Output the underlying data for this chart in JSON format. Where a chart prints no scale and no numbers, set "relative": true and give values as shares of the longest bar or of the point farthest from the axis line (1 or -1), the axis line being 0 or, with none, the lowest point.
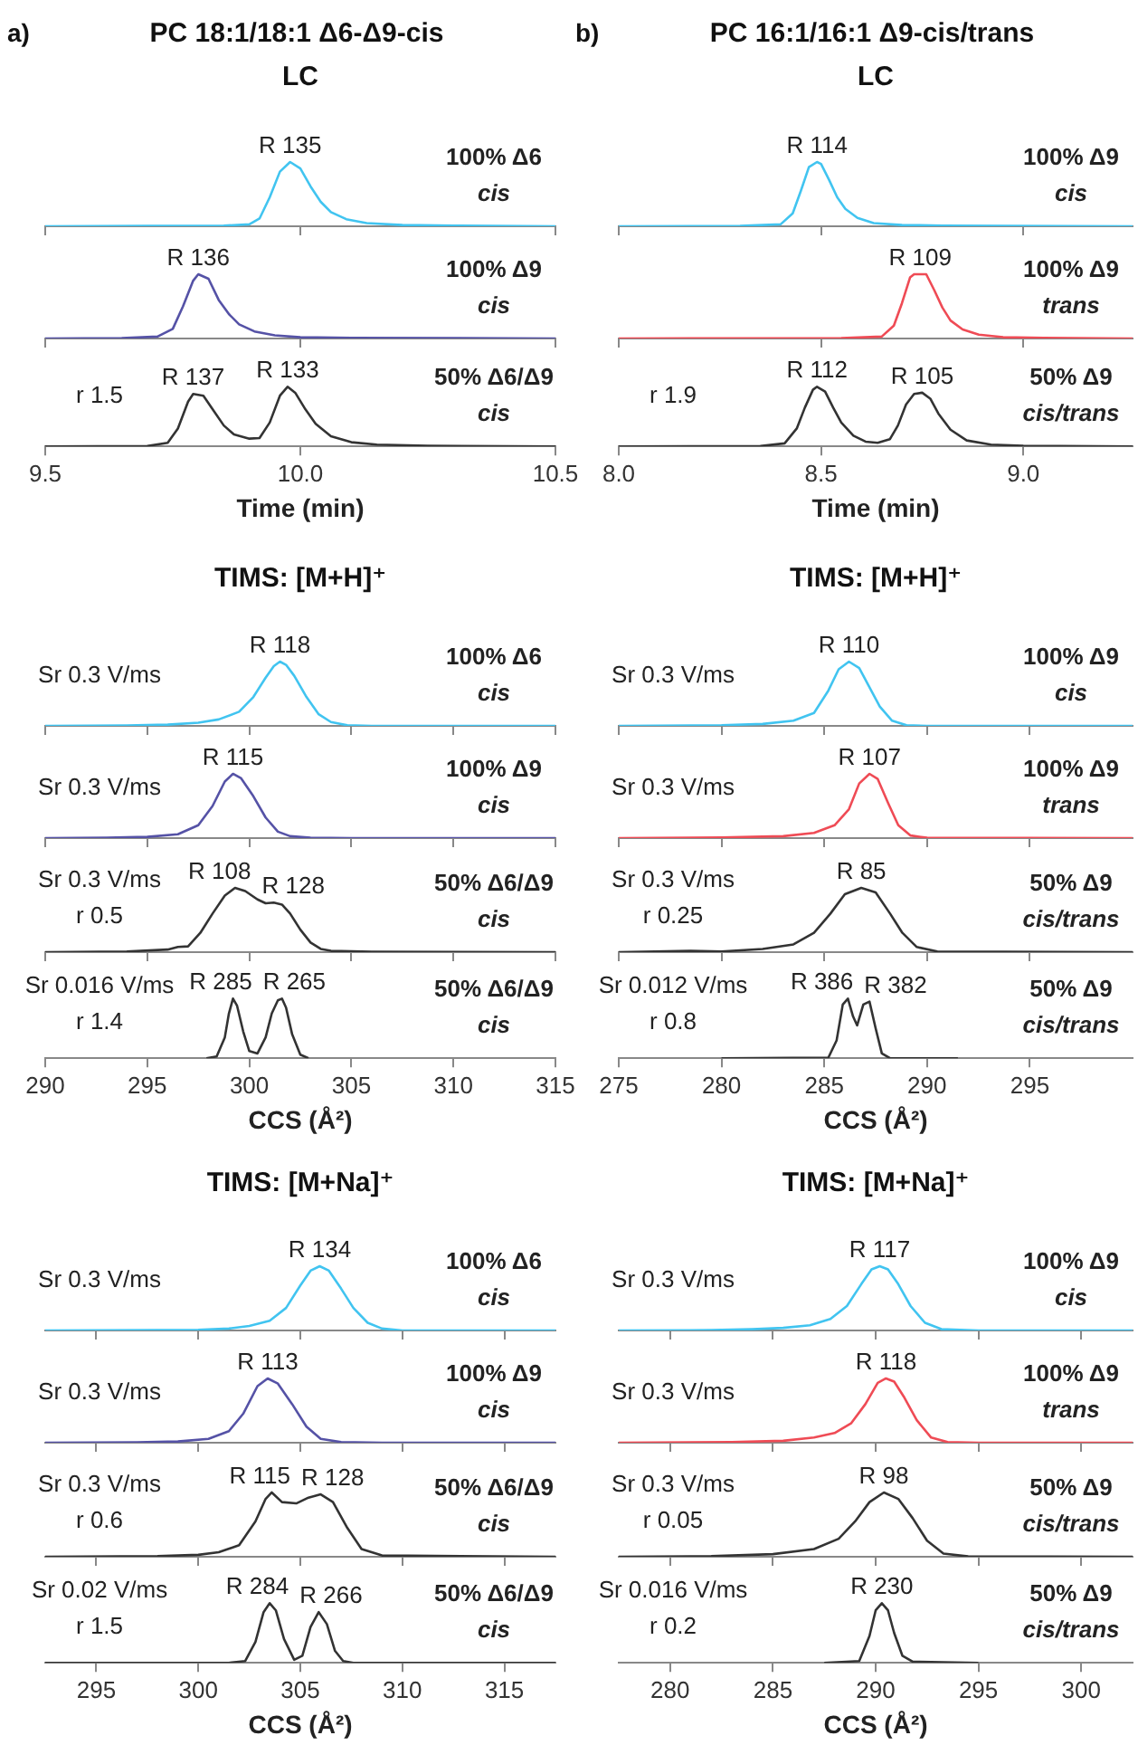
{
  "chart_data": [
    {
      "type": "other",
      "title": "PC 18:1/18:1 Δ6-Δ9-cis",
      "annotations": [
        "a)"
      ]
    },
    {
      "type": "other",
      "title": "PC 16:1/16:1 Δ9-cis/trans",
      "annotations": [
        "b)"
      ]
    },
    {
      "type": "line",
      "relative": true,
      "title": "LC",
      "xlim": [
        9.5,
        10.5
      ],
      "xticks": [
        9.5,
        10,
        10.5
      ],
      "tick_labels": false,
      "x": [
        9.5,
        9.7,
        9.85,
        9.9,
        9.92,
        9.94,
        9.96,
        9.98,
        10.0,
        10.02,
        10.04,
        10.06,
        10.09,
        10.13,
        10.2,
        10.3,
        10.5
      ],
      "series": [
        {
          "color": "#41c4f0",
          "values": [
            0,
            0.005,
            0.01,
            0.03,
            0.12,
            0.45,
            0.85,
            1,
            0.9,
            0.62,
            0.38,
            0.22,
            0.11,
            0.05,
            0.02,
            0.01,
            0
          ]
        }
      ],
      "annotations": [
        {
          "text": "R 135",
          "x": 9.98,
          "y": 1
        },
        "100% Δ6",
        "cis"
      ]
    },
    {
      "type": "line",
      "relative": true,
      "xlim": [
        9.5,
        10.5
      ],
      "xticks": [
        9.5,
        10,
        10.5
      ],
      "tick_labels": false,
      "x": [
        9.5,
        9.65,
        9.72,
        9.75,
        9.77,
        9.79,
        9.8,
        9.82,
        9.84,
        9.86,
        9.88,
        9.91,
        9.95,
        10.0,
        10.1,
        10.5
      ],
      "series": [
        {
          "color": "#5552a6",
          "values": [
            0,
            0.005,
            0.03,
            0.15,
            0.5,
            0.9,
            1,
            0.93,
            0.6,
            0.38,
            0.22,
            0.11,
            0.05,
            0.02,
            0.01,
            0
          ]
        }
      ],
      "annotations": [
        {
          "text": "R 136",
          "x": 9.8,
          "y": 1
        },
        "100% Δ9",
        "cis"
      ]
    },
    {
      "type": "line",
      "relative": true,
      "xlabel": "Time (min)",
      "xlim": [
        9.5,
        10.5
      ],
      "xticks": [
        9.5,
        {
          "value": 10,
          "label": "10.0"
        },
        10.5
      ],
      "tick_labels": "x",
      "x": [
        9.5,
        9.7,
        9.74,
        9.76,
        9.78,
        9.79,
        9.81,
        9.83,
        9.85,
        9.87,
        9.9,
        9.92,
        9.94,
        9.96,
        9.975,
        9.99,
        10.01,
        10.03,
        10.06,
        10.1,
        10.15,
        10.25,
        10.5
      ],
      "series": [
        {
          "color": "#333333",
          "values": [
            0,
            0.005,
            0.06,
            0.3,
            0.75,
            0.88,
            0.85,
            0.6,
            0.35,
            0.2,
            0.13,
            0.14,
            0.4,
            0.85,
            1,
            0.9,
            0.62,
            0.38,
            0.17,
            0.07,
            0.03,
            0.01,
            0
          ]
        }
      ],
      "annotations": [
        {
          "text": "R 137",
          "x": 9.79,
          "y": 0.88
        },
        {
          "text": "R 133",
          "x": 9.975,
          "y": 1
        },
        "50% Δ6/Δ9",
        "cis",
        "r 1.5"
      ]
    },
    {
      "type": "line",
      "relative": true,
      "title": "LC",
      "xlim": [
        8.0,
        9.27
      ],
      "xticks": [
        8,
        8.5,
        9
      ],
      "tick_labels": false,
      "x": [
        8.0,
        8.3,
        8.4,
        8.43,
        8.45,
        8.47,
        8.49,
        8.5,
        8.52,
        8.54,
        8.56,
        8.59,
        8.63,
        8.7,
        8.8,
        9.27
      ],
      "series": [
        {
          "color": "#41c4f0",
          "values": [
            0,
            0.005,
            0.03,
            0.2,
            0.55,
            0.92,
            1,
            0.97,
            0.72,
            0.45,
            0.27,
            0.13,
            0.05,
            0.02,
            0.01,
            0
          ]
        }
      ],
      "annotations": [
        {
          "text": "R 114",
          "x": 8.49,
          "y": 1
        },
        "100% Δ9",
        "cis"
      ]
    },
    {
      "type": "line",
      "relative": true,
      "xlim": [
        8.0,
        9.27
      ],
      "xticks": [
        8,
        8.5,
        9
      ],
      "tick_labels": false,
      "x": [
        8.0,
        8.55,
        8.65,
        8.68,
        8.7,
        8.72,
        8.73,
        8.76,
        8.78,
        8.8,
        8.82,
        8.85,
        8.89,
        8.95,
        9.05,
        9.27
      ],
      "series": [
        {
          "color": "#ef4b55",
          "values": [
            0,
            0.005,
            0.03,
            0.2,
            0.55,
            0.95,
            1,
            1,
            0.75,
            0.48,
            0.28,
            0.14,
            0.06,
            0.02,
            0.01,
            0
          ]
        }
      ],
      "annotations": [
        {
          "text": "R 109",
          "x": 8.745,
          "y": 1
        },
        "100% Δ9",
        "trans"
      ]
    },
    {
      "type": "line",
      "relative": true,
      "xlabel": "Time (min)",
      "xlim": [
        8.0,
        9.27
      ],
      "xticks": [
        {
          "value": 8,
          "label": "8.0"
        },
        8.5,
        {
          "value": 9,
          "label": "9.0"
        }
      ],
      "tick_labels": "x",
      "x": [
        8.0,
        8.35,
        8.41,
        8.44,
        8.46,
        8.48,
        8.49,
        8.51,
        8.53,
        8.55,
        8.58,
        8.61,
        8.64,
        8.67,
        8.69,
        8.71,
        8.73,
        8.75,
        8.77,
        8.79,
        8.82,
        8.86,
        8.92,
        9.0,
        9.27
      ],
      "series": [
        {
          "color": "#333333",
          "values": [
            0,
            0.005,
            0.05,
            0.3,
            0.65,
            0.95,
            1,
            0.92,
            0.65,
            0.4,
            0.18,
            0.08,
            0.06,
            0.12,
            0.35,
            0.7,
            0.88,
            0.9,
            0.8,
            0.55,
            0.28,
            0.1,
            0.03,
            0.01,
            0
          ]
        }
      ],
      "annotations": [
        {
          "text": "R 112",
          "x": 8.49,
          "y": 1
        },
        {
          "text": "R 105",
          "x": 8.75,
          "y": 0.9
        },
        "50% Δ9",
        "cis/trans",
        "r 1.9"
      ]
    },
    {
      "type": "line",
      "relative": true,
      "title": "TIMS: [M+H]⁺",
      "xlim": [
        290,
        315
      ],
      "xticks": [
        290,
        295,
        300,
        305,
        310,
        315
      ],
      "tick_labels": false,
      "x": [
        290,
        294,
        296,
        297.5,
        298.5,
        299.5,
        300.2,
        300.8,
        301.2,
        301.5,
        301.8,
        302.2,
        302.8,
        303.4,
        304,
        304.8,
        306,
        315
      ],
      "series": [
        {
          "color": "#41c4f0",
          "values": [
            0,
            0.005,
            0.02,
            0.05,
            0.1,
            0.22,
            0.45,
            0.75,
            0.93,
            1,
            0.95,
            0.78,
            0.45,
            0.18,
            0.06,
            0.01,
            0,
            0
          ]
        }
      ],
      "annotations": [
        {
          "text": "R 118",
          "x": 301.5,
          "y": 1
        },
        "100% Δ6",
        "cis",
        "Sr 0.3 V/ms"
      ]
    },
    {
      "type": "line",
      "relative": true,
      "xlim": [
        290,
        315
      ],
      "xticks": [
        290,
        295,
        300,
        305,
        310,
        315
      ],
      "tick_labels": false,
      "x": [
        290,
        293,
        295,
        296.5,
        297.5,
        298.2,
        298.8,
        299.2,
        299.6,
        300.2,
        300.8,
        301.4,
        302,
        303,
        305,
        315
      ],
      "series": [
        {
          "color": "#5552a6",
          "values": [
            0,
            0.005,
            0.02,
            0.06,
            0.2,
            0.5,
            0.88,
            1,
            0.93,
            0.65,
            0.32,
            0.1,
            0.03,
            0.005,
            0,
            0
          ]
        }
      ],
      "annotations": [
        {
          "text": "R 115",
          "x": 299.2,
          "y": 1
        },
        "100% Δ9",
        "cis",
        "Sr 0.3 V/ms"
      ]
    },
    {
      "type": "line",
      "relative": true,
      "xlim": [
        290,
        315
      ],
      "xticks": [
        290,
        295,
        300,
        305,
        310,
        315
      ],
      "tick_labels": false,
      "x": [
        290,
        294,
        296,
        296.5,
        297,
        297.6,
        298.2,
        298.8,
        299.3,
        299.8,
        300.4,
        300.8,
        301.2,
        301.6,
        302,
        302.5,
        303,
        303.5,
        304,
        306,
        315
      ],
      "series": [
        {
          "color": "#333333",
          "values": [
            0,
            0.01,
            0.04,
            0.08,
            0.09,
            0.3,
            0.6,
            0.88,
            1,
            0.95,
            0.82,
            0.76,
            0.77,
            0.74,
            0.6,
            0.35,
            0.15,
            0.05,
            0.02,
            0.005,
            0
          ]
        }
      ],
      "annotations": [
        {
          "text": "R 108",
          "x": 299.3,
          "y": 1
        },
        {
          "text": "R 128",
          "x": 301.4,
          "y": 0.77
        },
        "50% Δ6/Δ9",
        "cis",
        "Sr 0.3 V/ms",
        "r 0.5"
      ]
    },
    {
      "type": "line",
      "relative": true,
      "xlabel": "CCS (Å²)",
      "xlim": [
        290,
        315
      ],
      "xticks": [
        290,
        295,
        300,
        305,
        310,
        315
      ],
      "tick_labels": "x",
      "x": [
        297.9,
        298.4,
        298.8,
        299.0,
        299.2,
        299.4,
        299.7,
        300.0,
        300.4,
        300.8,
        301.1,
        301.4,
        301.6,
        301.8,
        302.1,
        302.5,
        302.9
      ],
      "series": [
        {
          "color": "#333333",
          "values": [
            0,
            0.03,
            0.35,
            0.75,
            1,
            0.88,
            0.45,
            0.12,
            0.08,
            0.35,
            0.75,
            0.97,
            1,
            0.85,
            0.4,
            0.06,
            0
          ]
        }
      ],
      "annotations": [
        {
          "text": "R 285",
          "x": 299.2,
          "y": 1
        },
        {
          "text": "R 265",
          "x": 301.6,
          "y": 1
        },
        "50% Δ6/Δ9",
        "cis",
        "Sr 0.016 V/ms",
        "r 1.4"
      ]
    },
    {
      "type": "line",
      "relative": true,
      "title": "TIMS: [M+H]⁺",
      "xlim": [
        275,
        300
      ],
      "xticks": [
        275,
        280,
        285,
        290,
        295
      ],
      "tick_labels": false,
      "x": [
        275,
        280,
        282,
        283.5,
        284.5,
        285.2,
        285.7,
        286.2,
        286.7,
        287.2,
        287.7,
        288.3,
        289,
        290,
        300
      ],
      "series": [
        {
          "color": "#41c4f0",
          "values": [
            0,
            0.01,
            0.03,
            0.08,
            0.2,
            0.55,
            0.88,
            1,
            0.9,
            0.6,
            0.3,
            0.08,
            0.01,
            0,
            0
          ]
        }
      ],
      "annotations": [
        {
          "text": "R 110",
          "x": 286.2,
          "y": 1
        },
        "100% Δ9",
        "cis",
        "Sr 0.3 V/ms"
      ]
    },
    {
      "type": "line",
      "relative": true,
      "xlim": [
        275,
        300
      ],
      "xticks": [
        275,
        280,
        285,
        290,
        295
      ],
      "tick_labels": false,
      "x": [
        275,
        280,
        283,
        284.5,
        285.5,
        286.2,
        286.7,
        287.2,
        287.6,
        288.1,
        288.6,
        289.2,
        290,
        300
      ],
      "series": [
        {
          "color": "#ef4b55",
          "values": [
            0,
            0.01,
            0.03,
            0.08,
            0.2,
            0.45,
            0.85,
            1,
            0.92,
            0.55,
            0.2,
            0.04,
            0.005,
            0
          ]
        }
      ],
      "annotations": [
        {
          "text": "R 107",
          "x": 287.2,
          "y": 1
        },
        "100% Δ9",
        "trans",
        "Sr 0.3 V/ms"
      ]
    },
    {
      "type": "line",
      "relative": true,
      "xlim": [
        275,
        300
      ],
      "xticks": [
        275,
        280,
        285,
        290,
        295
      ],
      "tick_labels": false,
      "x": [
        275,
        278.5,
        280,
        282,
        283.5,
        284.5,
        285.3,
        286,
        286.8,
        287.5,
        288.2,
        288.8,
        289.5,
        290.5,
        300
      ],
      "series": [
        {
          "color": "#333333",
          "values": [
            0,
            0.02,
            0.01,
            0.05,
            0.12,
            0.3,
            0.6,
            0.9,
            1,
            0.93,
            0.6,
            0.3,
            0.08,
            0.01,
            0
          ]
        }
      ],
      "annotations": [
        {
          "text": "R 85",
          "x": 286.8,
          "y": 1
        },
        "50% Δ9",
        "cis/trans",
        "Sr 0.3 V/ms",
        "r 0.25"
      ]
    },
    {
      "type": "line",
      "relative": true,
      "xlabel": "CCS (Å²)",
      "xlim": [
        275,
        300
      ],
      "xticks": [
        275,
        280,
        285,
        290,
        295
      ],
      "tick_labels": "x",
      "x": [
        280,
        285.2,
        285.6,
        285.9,
        286.15,
        286.4,
        286.6,
        286.9,
        287.2,
        287.5,
        287.8,
        288.2,
        291.5
      ],
      "series": [
        {
          "color": "#333333",
          "values": [
            0,
            0.01,
            0.3,
            0.9,
            1,
            0.7,
            0.55,
            0.9,
            0.95,
            0.5,
            0.08,
            0,
            0
          ]
        }
      ],
      "annotations": [
        {
          "text": "R 386",
          "x": 286.15,
          "y": 1
        },
        {
          "text": "R 382",
          "x": 287.2,
          "y": 0.95
        },
        "50% Δ9",
        "cis/trans",
        "Sr 0.012 V/ms",
        "r 0.8"
      ]
    },
    {
      "type": "line",
      "relative": true,
      "title": "TIMS: [M+Na]⁺",
      "xlim": [
        292.5,
        317.5
      ],
      "xticks": [
        295,
        300,
        305,
        310,
        315
      ],
      "tick_labels": false,
      "x": [
        292.5,
        298,
        300,
        301.5,
        302.5,
        303.5,
        304.3,
        305,
        305.5,
        305.95,
        306.4,
        307,
        307.6,
        308.3,
        309,
        310,
        317.5
      ],
      "series": [
        {
          "color": "#41c4f0",
          "values": [
            0,
            0.005,
            0.01,
            0.03,
            0.07,
            0.15,
            0.35,
            0.7,
            0.93,
            1,
            0.93,
            0.65,
            0.35,
            0.12,
            0.03,
            0,
            0
          ]
        }
      ],
      "annotations": [
        {
          "text": "R 134",
          "x": 305.95,
          "y": 1
        },
        "100% Δ6",
        "cis",
        "Sr 0.3 V/ms"
      ]
    },
    {
      "type": "line",
      "relative": true,
      "xlim": [
        292.5,
        317.5
      ],
      "xticks": [
        295,
        300,
        305,
        310,
        315
      ],
      "tick_labels": false,
      "x": [
        292.5,
        297,
        299,
        300.5,
        301.5,
        302.2,
        302.9,
        303.4,
        303.9,
        304.6,
        305.3,
        306,
        307,
        309,
        317.5
      ],
      "series": [
        {
          "color": "#5552a6",
          "values": [
            0,
            0.005,
            0.02,
            0.06,
            0.18,
            0.45,
            0.88,
            1,
            0.92,
            0.6,
            0.25,
            0.06,
            0.01,
            0,
            0
          ]
        }
      ],
      "annotations": [
        {
          "text": "R 113",
          "x": 303.4,
          "y": 1
        },
        "100% Δ9",
        "cis",
        "Sr 0.3 V/ms"
      ]
    },
    {
      "type": "line",
      "relative": true,
      "xlim": [
        292.5,
        317.5
      ],
      "xticks": [
        295,
        300,
        305,
        310,
        315
      ],
      "tick_labels": false,
      "x": [
        292.5,
        298,
        300,
        301,
        302,
        302.8,
        303.3,
        303.6,
        304.1,
        304.8,
        305.4,
        306,
        306.6,
        307.3,
        308,
        309,
        317.5
      ],
      "series": [
        {
          "color": "#333333",
          "values": [
            0,
            0.01,
            0.03,
            0.07,
            0.18,
            0.55,
            0.9,
            1,
            0.85,
            0.83,
            0.92,
            0.97,
            0.85,
            0.45,
            0.12,
            0.02,
            0
          ]
        }
      ],
      "annotations": [
        {
          "text": "R 115",
          "x": 303.6,
          "y": 1
        },
        {
          "text": "R 128",
          "x": 306,
          "y": 0.97
        },
        "50% Δ6/Δ9",
        "cis",
        "Sr 0.3 V/ms",
        "r 0.6"
      ]
    },
    {
      "type": "line",
      "relative": true,
      "xlabel": "CCS (Å²)",
      "xlim": [
        292.5,
        317.5
      ],
      "xticks": [
        295,
        300,
        305,
        310,
        315
      ],
      "tick_labels": "x",
      "x": [
        292.5,
        301.5,
        302.3,
        302.8,
        303.2,
        303.5,
        303.8,
        304.2,
        304.7,
        305.1,
        305.5,
        305.9,
        306.3,
        306.7,
        307.1,
        307.6,
        317.5
      ],
      "series": [
        {
          "color": "#333333",
          "values": [
            0,
            0,
            0.03,
            0.35,
            0.85,
            1,
            0.88,
            0.4,
            0.05,
            0.12,
            0.6,
            0.85,
            0.65,
            0.2,
            0.03,
            0,
            0
          ]
        }
      ],
      "annotations": [
        {
          "text": "R 284",
          "x": 303.5,
          "y": 1
        },
        {
          "text": "R 266",
          "x": 305.9,
          "y": 0.85
        },
        "50% Δ6/Δ9",
        "cis",
        "Sr 0.02 V/ms",
        "r 1.5"
      ]
    },
    {
      "type": "line",
      "relative": true,
      "title": "TIMS: [M+Na]⁺",
      "xlim": [
        277.5,
        302.5
      ],
      "xticks": [
        280,
        285,
        290,
        295,
        300
      ],
      "tick_labels": false,
      "x": [
        277.5,
        282,
        284,
        285.5,
        286.8,
        287.8,
        288.6,
        289.3,
        289.8,
        290.2,
        290.6,
        291.1,
        291.7,
        292.4,
        293.2,
        295,
        302.5
      ],
      "series": [
        {
          "color": "#41c4f0",
          "values": [
            0,
            0.005,
            0.02,
            0.04,
            0.08,
            0.18,
            0.38,
            0.72,
            0.95,
            1,
            0.95,
            0.72,
            0.38,
            0.12,
            0.02,
            0,
            0
          ]
        }
      ],
      "annotations": [
        {
          "text": "R 117",
          "x": 290.2,
          "y": 1
        },
        "100% Δ9",
        "cis",
        "Sr 0.3 V/ms"
      ]
    },
    {
      "type": "line",
      "relative": true,
      "xlim": [
        277.5,
        302.5
      ],
      "xticks": [
        280,
        285,
        290,
        295,
        300
      ],
      "tick_labels": false,
      "x": [
        277.5,
        283,
        285.5,
        287,
        288,
        288.8,
        289.5,
        290.1,
        290.5,
        290.9,
        291.4,
        292,
        292.7,
        293.5,
        295,
        302.5
      ],
      "series": [
        {
          "color": "#ef4b55",
          "values": [
            0,
            0.01,
            0.03,
            0.08,
            0.15,
            0.3,
            0.6,
            0.93,
            1,
            0.95,
            0.7,
            0.35,
            0.08,
            0.01,
            0,
            0
          ]
        }
      ],
      "annotations": [
        {
          "text": "R 118",
          "x": 290.5,
          "y": 1
        },
        "100% Δ9",
        "trans",
        "Sr 0.3 V/ms"
      ]
    },
    {
      "type": "line",
      "relative": true,
      "xlim": [
        277.5,
        302.5
      ],
      "xticks": [
        280,
        285,
        290,
        295,
        300
      ],
      "tick_labels": false,
      "x": [
        277.5,
        282,
        285,
        287,
        288.2,
        289,
        289.7,
        290.4,
        291.1,
        291.8,
        292.5,
        293.3,
        294.5,
        302.5
      ],
      "series": [
        {
          "color": "#333333",
          "values": [
            0,
            0.01,
            0.04,
            0.12,
            0.28,
            0.55,
            0.85,
            1,
            0.9,
            0.6,
            0.25,
            0.05,
            0.005,
            0
          ]
        }
      ],
      "annotations": [
        {
          "text": "R 98",
          "x": 290.4,
          "y": 1
        },
        "50% Δ9",
        "cis/trans",
        "Sr 0.3 V/ms",
        "r 0.05"
      ]
    },
    {
      "type": "line",
      "relative": true,
      "xlabel": "CCS (Å²)",
      "xlim": [
        277.5,
        302.5
      ],
      "xticks": [
        280,
        285,
        290,
        295,
        300
      ],
      "tick_labels": "x",
      "x": [
        287.5,
        289.2,
        289.7,
        290,
        290.3,
        290.6,
        290.9,
        291.3,
        291.8,
        295
      ],
      "series": [
        {
          "color": "#333333",
          "values": [
            0,
            0.03,
            0.45,
            0.88,
            1,
            0.88,
            0.5,
            0.12,
            0.02,
            0
          ]
        }
      ],
      "annotations": [
        {
          "text": "R 230",
          "x": 290.3,
          "y": 1
        },
        "50% Δ9",
        "cis/trans",
        "Sr 0.016 V/ms",
        "r 0.2"
      ]
    }
  ]
}
